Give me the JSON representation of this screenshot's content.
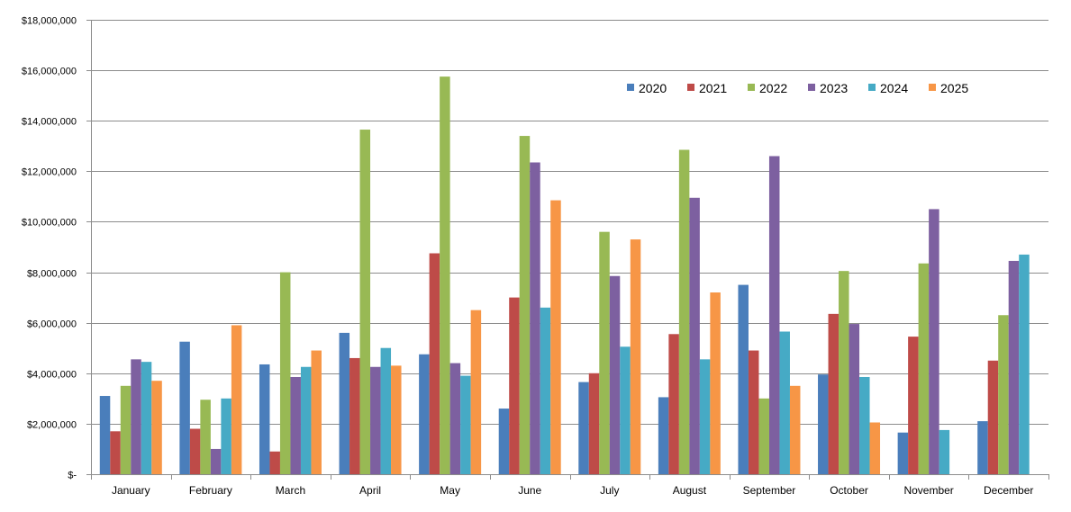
{
  "chart_data": {
    "type": "bar",
    "title": "",
    "xlabel": "",
    "ylabel": "",
    "ylim": [
      0,
      18000000
    ],
    "y_ticks": [
      0,
      2000000,
      4000000,
      6000000,
      8000000,
      10000000,
      12000000,
      14000000,
      16000000,
      18000000
    ],
    "y_tick_labels": [
      "$-",
      "$2,000,000",
      "$4,000,000",
      "$6,000,000",
      "$8,000,000",
      "$10,000,000",
      "$12,000,000",
      "$14,000,000",
      "$16,000,000",
      "$18,000,000"
    ],
    "grid": true,
    "legend_position": "top-right",
    "categories": [
      "January",
      "February",
      "March",
      "April",
      "May",
      "June",
      "July",
      "August",
      "September",
      "October",
      "November",
      "December"
    ],
    "series": [
      {
        "name": "2020",
        "color": "#4a7ebb",
        "values": [
          3100000,
          5250000,
          4350000,
          5600000,
          4750000,
          2600000,
          3650000,
          3050000,
          7500000,
          3950000,
          1650000,
          2100000
        ]
      },
      {
        "name": "2021",
        "color": "#be4b48",
        "values": [
          1700000,
          1800000,
          900000,
          4600000,
          8750000,
          7000000,
          4000000,
          5550000,
          4900000,
          6350000,
          5450000,
          4500000
        ]
      },
      {
        "name": "2022",
        "color": "#98b954",
        "values": [
          3500000,
          2950000,
          8000000,
          13650000,
          15750000,
          13400000,
          9600000,
          12850000,
          3000000,
          8050000,
          8350000,
          6300000
        ]
      },
      {
        "name": "2023",
        "color": "#7d60a0",
        "values": [
          4550000,
          1000000,
          3850000,
          4250000,
          4400000,
          12350000,
          7850000,
          10950000,
          12600000,
          5950000,
          10500000,
          8450000
        ]
      },
      {
        "name": "2024",
        "color": "#46aac5",
        "values": [
          4450000,
          3000000,
          4250000,
          5000000,
          3900000,
          6600000,
          5050000,
          4550000,
          5650000,
          3850000,
          1750000,
          8700000
        ]
      },
      {
        "name": "2025",
        "color": "#f79646",
        "values": [
          3700000,
          5900000,
          4900000,
          4300000,
          6500000,
          10850000,
          9300000,
          7200000,
          3500000,
          2050000,
          null,
          null
        ]
      }
    ]
  }
}
